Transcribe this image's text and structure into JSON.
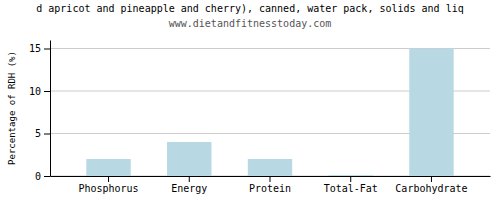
{
  "chart_data": {
    "type": "bar",
    "title": "d apricot and pineapple and cherry), canned, water pack, solids and liq",
    "subtitle": "www.dietandfitnesstoday.com",
    "categories": [
      "Phosphorus",
      "Energy",
      "Protein",
      "Total-Fat",
      "Carbohydrate"
    ],
    "values": [
      2,
      4,
      2,
      0.1,
      15
    ],
    "color": "#b8d8e4",
    "ylabel": "Percentage of RDH (%)",
    "ylim": [
      0,
      16
    ],
    "yticks": [
      0,
      5,
      10,
      15
    ],
    "grid": true
  }
}
